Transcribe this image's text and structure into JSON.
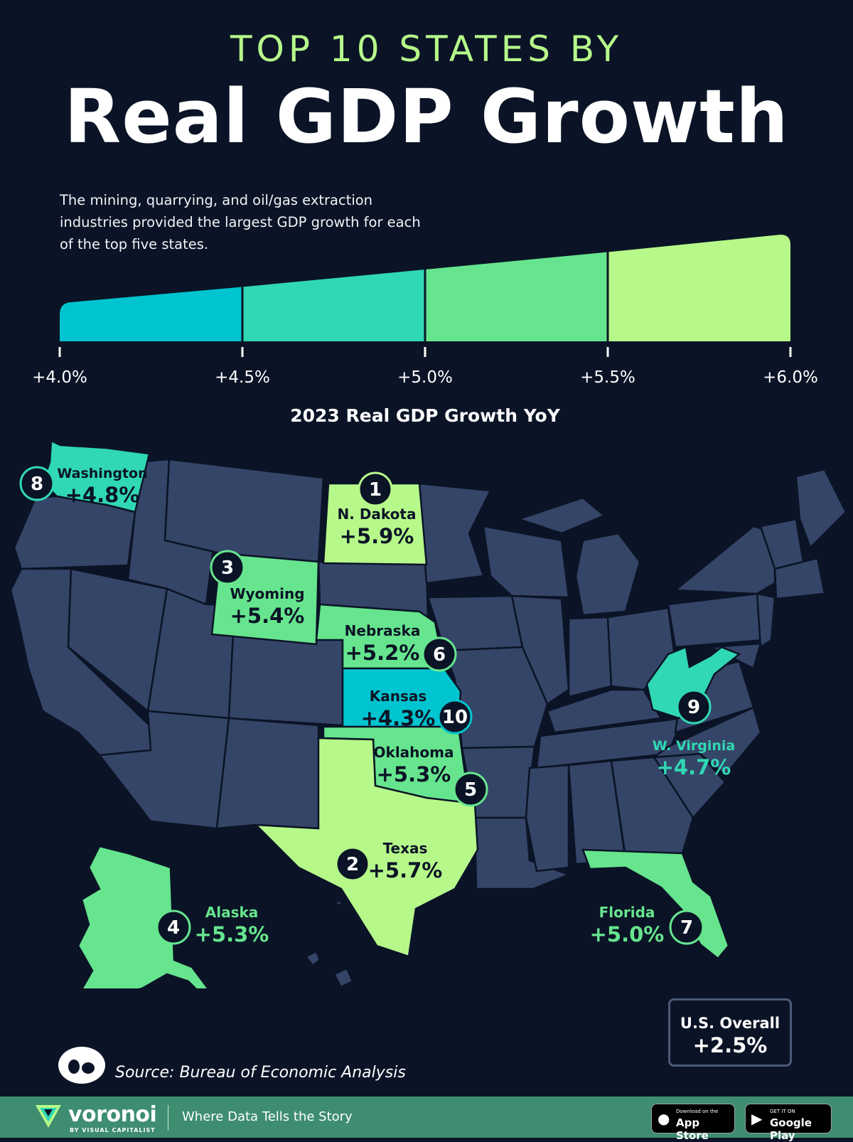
{
  "header": {
    "kicker": "TOP 10 STATES BY",
    "title": "Real GDP Growth",
    "subtitle": "The mining, quarrying, and oil/gas extraction industries provided the largest GDP growth for each of the top five states."
  },
  "scale": {
    "title": "2023 Real GDP Growth YoY",
    "ticks": [
      "+4.0%",
      "+4.5%",
      "+5.0%",
      "+5.5%",
      "+6.0%"
    ],
    "range": [
      4.0,
      6.0
    ],
    "bands": [
      {
        "from": 4.0,
        "to": 4.5,
        "color": "#00c4cf"
      },
      {
        "from": 4.5,
        "to": 5.0,
        "color": "#30d8b4"
      },
      {
        "from": 5.0,
        "to": 5.5,
        "color": "#66e58e"
      },
      {
        "from": 5.5,
        "to": 6.0,
        "color": "#b6f98a"
      }
    ]
  },
  "map": {
    "base_color": "#354568",
    "states": [
      {
        "rank": "1",
        "name": "N. Dakota",
        "value": "+5.9%",
        "growth": 5.9,
        "color": "#b6f98a"
      },
      {
        "rank": "2",
        "name": "Texas",
        "value": "+5.7%",
        "growth": 5.7,
        "color": "#b6f98a"
      },
      {
        "rank": "3",
        "name": "Wyoming",
        "value": "+5.4%",
        "growth": 5.4,
        "color": "#66e58e"
      },
      {
        "rank": "4",
        "name": "Alaska",
        "value": "+5.3%",
        "growth": 5.3,
        "color": "#66e58e"
      },
      {
        "rank": "5",
        "name": "Oklahoma",
        "value": "+5.3%",
        "growth": 5.3,
        "color": "#66e58e"
      },
      {
        "rank": "6",
        "name": "Nebraska",
        "value": "+5.2%",
        "growth": 5.2,
        "color": "#66e58e"
      },
      {
        "rank": "7",
        "name": "Florida",
        "value": "+5.0%",
        "growth": 5.0,
        "color": "#66e58e"
      },
      {
        "rank": "8",
        "name": "Washington",
        "value": "+4.8%",
        "growth": 4.8,
        "color": "#30d8b4"
      },
      {
        "rank": "9",
        "name": "W. Virginia",
        "value": "+4.7%",
        "growth": 4.7,
        "color": "#30d8b4"
      },
      {
        "rank": "10",
        "name": "Kansas",
        "value": "+4.3%",
        "growth": 4.3,
        "color": "#00c4cf"
      }
    ]
  },
  "overall": {
    "label": "U.S. Overall",
    "value": "+2.5%"
  },
  "source": "Source: Bureau of Economic Analysis",
  "footer": {
    "brand": "voronoi",
    "brand_sub": "BY VISUAL CAPITALIST",
    "tagline": "Where Data Tells the Story",
    "app_store_small": "Download on the",
    "app_store_big": "App Store",
    "google_small": "GET IT ON",
    "google_big": "Google Play"
  }
}
